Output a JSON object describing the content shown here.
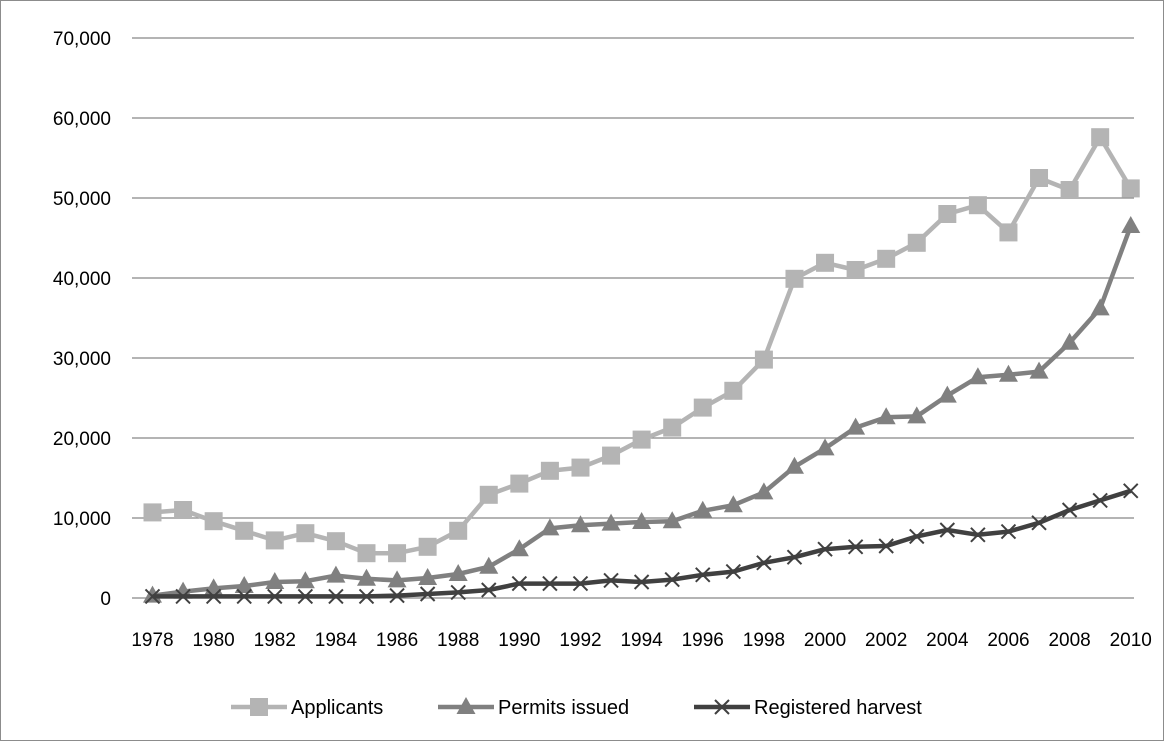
{
  "chart_data": {
    "type": "line",
    "title": "",
    "xlabel": "",
    "ylabel": "",
    "ylim": [
      0,
      70000
    ],
    "yticks": [
      0,
      10000,
      20000,
      30000,
      40000,
      50000,
      60000,
      70000
    ],
    "ytick_labels": [
      "0",
      "10,000",
      "20,000",
      "30,000",
      "40,000",
      "50,000",
      "60,000",
      "70,000"
    ],
    "xlim": [
      1978,
      2010
    ],
    "xtick_labels": [
      "1978",
      "1980",
      "1982",
      "1984",
      "1986",
      "1988",
      "1990",
      "1992",
      "1994",
      "1996",
      "1998",
      "2000",
      "2002",
      "2004",
      "2006",
      "2008",
      "2010"
    ],
    "grid": true,
    "legend_position": "bottom",
    "x": [
      1978,
      1979,
      1980,
      1981,
      1982,
      1983,
      1984,
      1985,
      1986,
      1987,
      1988,
      1989,
      1990,
      1991,
      1992,
      1993,
      1994,
      1995,
      1996,
      1997,
      1998,
      1999,
      2000,
      2001,
      2002,
      2003,
      2004,
      2005,
      2006,
      2007,
      2008,
      2009,
      2010
    ],
    "series": [
      {
        "name": "Applicants",
        "color": "#b4b4b4",
        "marker": "square",
        "values": [
          10700,
          11000,
          9600,
          8400,
          7200,
          8100,
          7100,
          5600,
          5600,
          6400,
          8400,
          12900,
          14300,
          15900,
          16300,
          17800,
          19800,
          21300,
          23800,
          25900,
          29800,
          39900,
          41900,
          41000,
          42400,
          44400,
          48000,
          49100,
          45700,
          52500,
          51000,
          57600,
          51200
        ]
      },
      {
        "name": "Permits issued",
        "color": "#808080",
        "marker": "triangle",
        "values": [
          300,
          800,
          1200,
          1500,
          2000,
          2100,
          2800,
          2400,
          2200,
          2500,
          3000,
          3900,
          6100,
          8700,
          9100,
          9300,
          9500,
          9600,
          10900,
          11600,
          13200,
          16400,
          18700,
          21300,
          22600,
          22700,
          25300,
          27600,
          27900,
          28300,
          31900,
          36200,
          46500
        ]
      },
      {
        "name": "Registered harvest",
        "color": "#404040",
        "marker": "x",
        "values": [
          200,
          200,
          200,
          200,
          200,
          200,
          200,
          200,
          300,
          500,
          700,
          1000,
          1800,
          1800,
          1800,
          2200,
          2000,
          2300,
          2900,
          3300,
          4400,
          5100,
          6100,
          6400,
          6500,
          7700,
          8500,
          7900,
          8300,
          9400,
          11000,
          12200,
          13400
        ]
      }
    ]
  }
}
